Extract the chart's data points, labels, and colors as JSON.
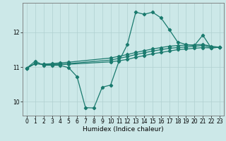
{
  "xlabel": "Humidex (Indice chaleur)",
  "bg_color": "#cce8e8",
  "line_color": "#1a7a6e",
  "grid_color": "#b0d0d0",
  "xlim": [
    -0.5,
    23.5
  ],
  "ylim": [
    9.6,
    12.85
  ],
  "yticks": [
    10,
    11,
    12
  ],
  "xticks": [
    0,
    1,
    2,
    3,
    4,
    5,
    6,
    7,
    8,
    9,
    10,
    11,
    12,
    13,
    14,
    15,
    16,
    17,
    18,
    19,
    20,
    21,
    22,
    23
  ],
  "series_main": [
    [
      0,
      10.97
    ],
    [
      1,
      11.17
    ],
    [
      2,
      11.05
    ],
    [
      3,
      11.05
    ],
    [
      4,
      11.05
    ],
    [
      5,
      10.98
    ],
    [
      6,
      10.72
    ],
    [
      7,
      9.83
    ],
    [
      8,
      9.82
    ],
    [
      9,
      10.42
    ],
    [
      10,
      10.48
    ],
    [
      11,
      11.17
    ],
    [
      12,
      11.65
    ],
    [
      13,
      12.58
    ],
    [
      14,
      12.52
    ],
    [
      15,
      12.58
    ],
    [
      16,
      12.42
    ],
    [
      17,
      12.08
    ],
    [
      18,
      11.72
    ],
    [
      19,
      11.65
    ],
    [
      20,
      11.62
    ],
    [
      21,
      11.92
    ],
    [
      22,
      11.55
    ],
    [
      23,
      11.57
    ]
  ],
  "series_trend1": [
    [
      0,
      10.97
    ],
    [
      1,
      11.1
    ],
    [
      2,
      11.08
    ],
    [
      3,
      11.08
    ],
    [
      4,
      11.08
    ],
    [
      5,
      11.08
    ],
    [
      10,
      11.15
    ],
    [
      11,
      11.18
    ],
    [
      12,
      11.22
    ],
    [
      13,
      11.28
    ],
    [
      14,
      11.33
    ],
    [
      15,
      11.38
    ],
    [
      16,
      11.42
    ],
    [
      17,
      11.46
    ],
    [
      18,
      11.5
    ],
    [
      19,
      11.52
    ],
    [
      20,
      11.54
    ],
    [
      21,
      11.56
    ],
    [
      22,
      11.55
    ],
    [
      23,
      11.57
    ]
  ],
  "series_trend2": [
    [
      0,
      10.97
    ],
    [
      1,
      11.1
    ],
    [
      2,
      11.08
    ],
    [
      3,
      11.08
    ],
    [
      4,
      11.08
    ],
    [
      5,
      11.1
    ],
    [
      10,
      11.2
    ],
    [
      11,
      11.25
    ],
    [
      12,
      11.3
    ],
    [
      13,
      11.36
    ],
    [
      14,
      11.41
    ],
    [
      15,
      11.46
    ],
    [
      16,
      11.5
    ],
    [
      17,
      11.54
    ],
    [
      18,
      11.56
    ],
    [
      19,
      11.58
    ],
    [
      20,
      11.6
    ],
    [
      21,
      11.62
    ],
    [
      22,
      11.57
    ],
    [
      23,
      11.57
    ]
  ],
  "series_trend3": [
    [
      0,
      10.97
    ],
    [
      1,
      11.1
    ],
    [
      2,
      11.08
    ],
    [
      3,
      11.1
    ],
    [
      4,
      11.12
    ],
    [
      5,
      11.14
    ],
    [
      10,
      11.26
    ],
    [
      11,
      11.31
    ],
    [
      12,
      11.36
    ],
    [
      13,
      11.42
    ],
    [
      14,
      11.47
    ],
    [
      15,
      11.52
    ],
    [
      16,
      11.56
    ],
    [
      17,
      11.6
    ],
    [
      18,
      11.62
    ],
    [
      19,
      11.63
    ],
    [
      20,
      11.64
    ],
    [
      21,
      11.65
    ],
    [
      22,
      11.6
    ],
    [
      23,
      11.57
    ]
  ]
}
